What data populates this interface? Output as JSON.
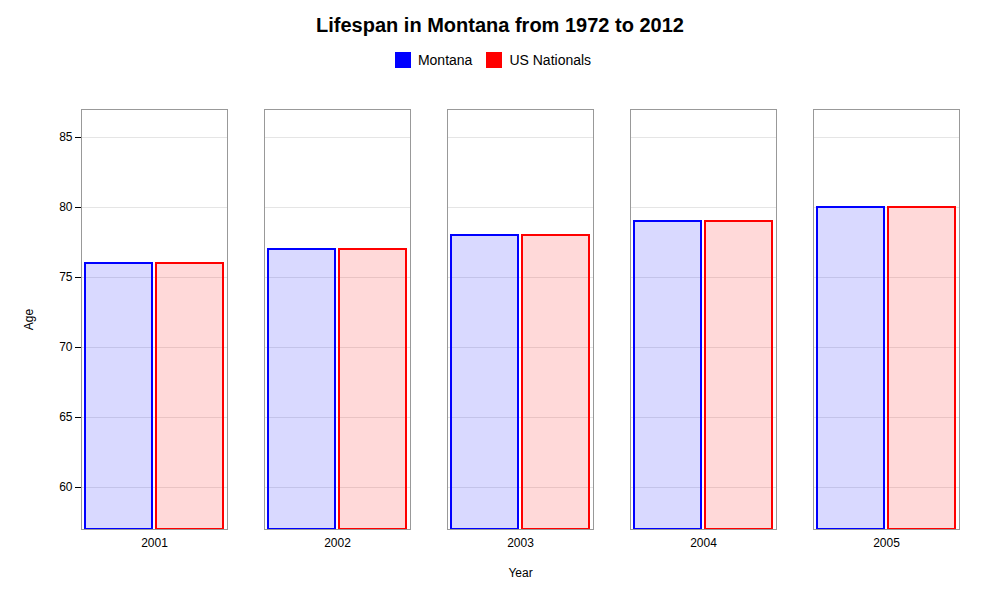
{
  "chart_data": {
    "type": "bar",
    "title": "Lifespan in Montana from 1972 to 2012",
    "xlabel": "Year",
    "ylabel": "Age",
    "categories": [
      "2001",
      "2002",
      "2003",
      "2004",
      "2005"
    ],
    "series": [
      {
        "name": "Montana",
        "color": "#0000ff",
        "values": [
          76,
          77,
          78,
          79,
          80
        ]
      },
      {
        "name": "US Nationals",
        "color": "#ff0000",
        "values": [
          76,
          77,
          78,
          79,
          80
        ]
      }
    ],
    "ylim": [
      57,
      87
    ],
    "yticks": [
      60,
      65,
      70,
      75,
      80,
      85
    ],
    "grid": true,
    "legend": "top"
  }
}
